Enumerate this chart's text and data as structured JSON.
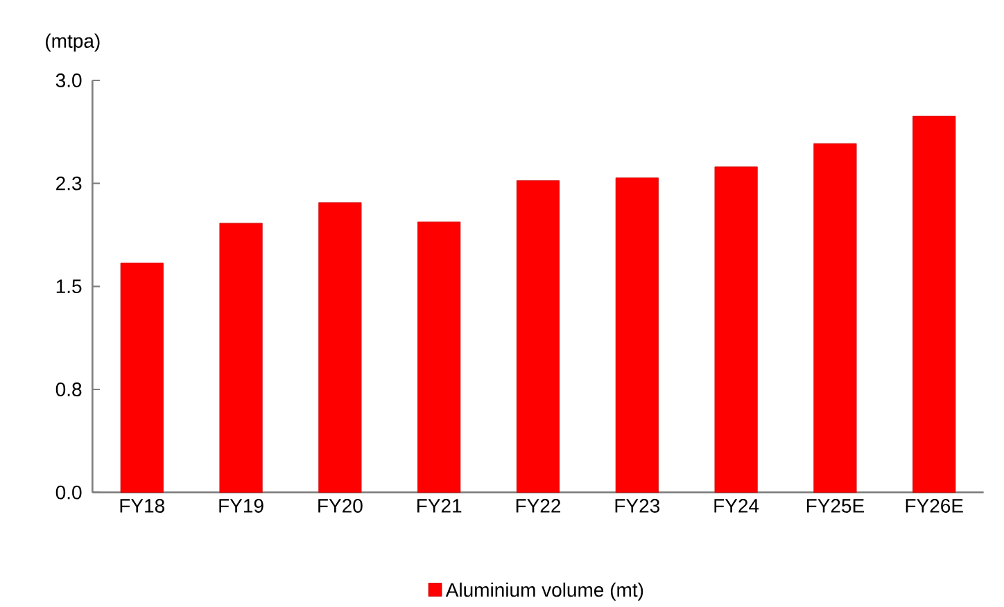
{
  "chart_data": {
    "type": "bar",
    "ylabel": "(mtpa)",
    "legend": "bottom",
    "grid": false,
    "categories": [
      "FY18",
      "FY19",
      "FY20",
      "FY21",
      "FY22",
      "FY23",
      "FY24",
      "FY25E",
      "FY26E"
    ],
    "series": [
      {
        "name": "Aluminium  volume (mt)",
        "color": "#ff0000",
        "values": [
          1.67,
          1.96,
          2.11,
          1.97,
          2.27,
          2.29,
          2.37,
          2.54,
          2.74
        ]
      }
    ],
    "ylim": [
      0,
      3
    ],
    "yticks": [
      {
        "value": 0,
        "label": "0.0"
      },
      {
        "value": 0.75,
        "label": "0.8"
      },
      {
        "value": 1.5,
        "label": "1.5"
      },
      {
        "value": 2.25,
        "label": "2.3"
      },
      {
        "value": 3,
        "label": "3.0"
      }
    ]
  }
}
